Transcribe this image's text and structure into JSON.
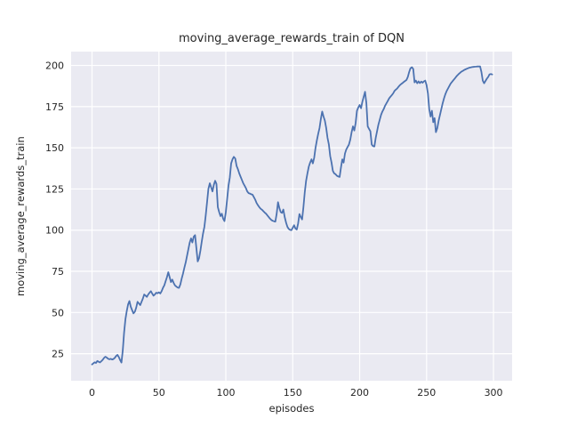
{
  "chart_data": {
    "type": "line",
    "title": "moving_average_rewards_train of DQN",
    "xlabel": "episodes",
    "ylabel": "moving_average_rewards_train",
    "xticks": [
      0,
      50,
      100,
      150,
      200,
      250,
      300
    ],
    "yticks": [
      25,
      50,
      75,
      100,
      125,
      150,
      175,
      200
    ],
    "xlim": [
      -15.6,
      313.9
    ],
    "ylim": [
      8.6,
      208.4
    ],
    "grid": true,
    "legend": "none",
    "colors": {
      "line": "#4C72B0",
      "plot_bg": "#EAEAF2",
      "grid": "#FFFFFF",
      "text": "#262626",
      "fig_bg": "#FFFFFF"
    },
    "series": [
      {
        "name": "moving_average_rewards_train",
        "color": "#4C72B0",
        "points": [
          [
            0,
            18.5
          ],
          [
            1,
            19.2
          ],
          [
            2,
            19.8
          ],
          [
            3,
            19.4
          ],
          [
            4,
            20.6
          ],
          [
            5,
            20.1
          ],
          [
            6,
            19.7
          ],
          [
            7,
            20.5
          ],
          [
            8,
            21.3
          ],
          [
            9,
            22.4
          ],
          [
            10,
            23.2
          ],
          [
            11,
            22.7
          ],
          [
            12,
            22.0
          ],
          [
            13,
            21.6
          ],
          [
            14,
            21.9
          ],
          [
            15,
            21.5
          ],
          [
            16,
            21.8
          ],
          [
            17,
            22.5
          ],
          [
            18,
            23.6
          ],
          [
            19,
            24.3
          ],
          [
            20,
            23.0
          ],
          [
            21,
            21.2
          ],
          [
            22,
            19.6
          ],
          [
            23,
            27.0
          ],
          [
            24,
            38.0
          ],
          [
            25,
            46.0
          ],
          [
            26,
            51.0
          ],
          [
            27,
            55.0
          ],
          [
            28,
            57.0
          ],
          [
            29,
            53.5
          ],
          [
            30,
            51.5
          ],
          [
            31,
            49.5
          ],
          [
            32,
            50.5
          ],
          [
            33,
            53.0
          ],
          [
            34,
            56.5
          ],
          [
            35,
            55.5
          ],
          [
            36,
            54.5
          ],
          [
            37,
            56.5
          ],
          [
            38,
            58.5
          ],
          [
            39,
            61.0
          ],
          [
            40,
            60.3
          ],
          [
            41,
            59.5
          ],
          [
            42,
            61.0
          ],
          [
            43,
            62.0
          ],
          [
            44,
            63.0
          ],
          [
            45,
            61.5
          ],
          [
            46,
            60.2
          ],
          [
            47,
            61.0
          ],
          [
            48,
            62.0
          ],
          [
            49,
            61.7
          ],
          [
            50,
            62.3
          ],
          [
            51,
            61.6
          ],
          [
            52,
            63.0
          ],
          [
            53,
            65.0
          ],
          [
            54,
            66.5
          ],
          [
            55,
            69.0
          ],
          [
            56,
            71.5
          ],
          [
            57,
            74.5
          ],
          [
            58,
            71.5
          ],
          [
            59,
            68.5
          ],
          [
            60,
            70.0
          ],
          [
            61,
            68.0
          ],
          [
            62,
            66.5
          ],
          [
            63,
            65.8
          ],
          [
            64,
            65.2
          ],
          [
            65,
            65.0
          ],
          [
            66,
            67.0
          ],
          [
            67,
            70.5
          ],
          [
            68,
            73.5
          ],
          [
            69,
            77.0
          ],
          [
            70,
            80.5
          ],
          [
            71,
            84.5
          ],
          [
            72,
            88.5
          ],
          [
            73,
            92.5
          ],
          [
            74,
            95.0
          ],
          [
            75,
            92.5
          ],
          [
            76,
            96.0
          ],
          [
            77,
            97.0
          ],
          [
            78,
            89.0
          ],
          [
            79,
            81.0
          ],
          [
            80,
            83.0
          ],
          [
            81,
            87.5
          ],
          [
            82,
            93.0
          ],
          [
            83,
            98.0
          ],
          [
            84,
            102.0
          ],
          [
            85,
            109.0
          ],
          [
            86,
            117.0
          ],
          [
            87,
            125.0
          ],
          [
            88,
            128.5
          ],
          [
            89,
            126.0
          ],
          [
            90,
            123.5
          ],
          [
            91,
            127.5
          ],
          [
            92,
            130.0
          ],
          [
            93,
            128.0
          ],
          [
            94,
            114.0
          ],
          [
            95,
            111.0
          ],
          [
            96,
            108.5
          ],
          [
            97,
            110.0
          ],
          [
            98,
            107.0
          ],
          [
            99,
            105.5
          ],
          [
            100,
            111.0
          ],
          [
            101,
            119.0
          ],
          [
            102,
            127.0
          ],
          [
            103,
            132.0
          ],
          [
            104,
            140.5
          ],
          [
            105,
            143.0
          ],
          [
            106,
            144.5
          ],
          [
            107,
            143.5
          ],
          [
            108,
            139.0
          ],
          [
            109,
            137.0
          ],
          [
            110,
            134.5
          ],
          [
            111,
            132.5
          ],
          [
            112,
            130.5
          ],
          [
            113,
            128.5
          ],
          [
            114,
            127.0
          ],
          [
            115,
            125.5
          ],
          [
            116,
            123.5
          ],
          [
            117,
            122.5
          ],
          [
            118,
            122.2
          ],
          [
            119,
            121.8
          ],
          [
            120,
            121.5
          ],
          [
            121,
            120.0
          ],
          [
            122,
            118.5
          ],
          [
            123,
            116.5
          ],
          [
            124,
            115.2
          ],
          [
            125,
            114.0
          ],
          [
            126,
            113.0
          ],
          [
            127,
            112.4
          ],
          [
            128,
            111.5
          ],
          [
            129,
            110.7
          ],
          [
            130,
            110.0
          ],
          [
            131,
            109.0
          ],
          [
            132,
            108.0
          ],
          [
            133,
            107.0
          ],
          [
            134,
            106.2
          ],
          [
            135,
            105.7
          ],
          [
            136,
            105.4
          ],
          [
            137,
            105.2
          ],
          [
            138,
            110.0
          ],
          [
            139,
            117.0
          ],
          [
            140,
            113.5
          ],
          [
            141,
            111.0
          ],
          [
            142,
            110.5
          ],
          [
            143,
            112.5
          ],
          [
            144,
            108.0
          ],
          [
            145,
            104.5
          ],
          [
            146,
            102.0
          ],
          [
            147,
            100.7
          ],
          [
            148,
            100.2
          ],
          [
            149,
            100.0
          ],
          [
            150,
            101.5
          ],
          [
            151,
            103.0
          ],
          [
            152,
            101.0
          ],
          [
            153,
            100.4
          ],
          [
            154,
            104.0
          ],
          [
            155,
            109.8
          ],
          [
            156,
            108.0
          ],
          [
            157,
            106.5
          ],
          [
            158,
            114.0
          ],
          [
            159,
            123.0
          ],
          [
            160,
            130.0
          ],
          [
            161,
            134.5
          ],
          [
            162,
            138.5
          ],
          [
            163,
            141.0
          ],
          [
            164,
            143.0
          ],
          [
            165,
            140.5
          ],
          [
            166,
            144.0
          ],
          [
            167,
            150.0
          ],
          [
            168,
            154.5
          ],
          [
            169,
            158.5
          ],
          [
            170,
            162.0
          ],
          [
            171,
            167.5
          ],
          [
            172,
            172.0
          ],
          [
            173,
            169.0
          ],
          [
            174,
            166.5
          ],
          [
            175,
            162.0
          ],
          [
            176,
            156.0
          ],
          [
            177,
            152.0
          ],
          [
            178,
            145.0
          ],
          [
            179,
            141.0
          ],
          [
            180,
            136.0
          ],
          [
            181,
            134.5
          ],
          [
            182,
            134.0
          ],
          [
            183,
            133.0
          ],
          [
            184,
            132.6
          ],
          [
            185,
            132.3
          ],
          [
            186,
            138.0
          ],
          [
            187,
            143.0
          ],
          [
            188,
            141.0
          ],
          [
            189,
            146.5
          ],
          [
            190,
            149.0
          ],
          [
            191,
            150.5
          ],
          [
            192,
            152.0
          ],
          [
            193,
            155.0
          ],
          [
            194,
            159.5
          ],
          [
            195,
            163.0
          ],
          [
            196,
            160.5
          ],
          [
            197,
            165.0
          ],
          [
            198,
            172.5
          ],
          [
            199,
            174.5
          ],
          [
            200,
            176.0
          ],
          [
            201,
            174.0
          ],
          [
            202,
            178.0
          ],
          [
            203,
            181.0
          ],
          [
            204,
            184.0
          ],
          [
            205,
            177.0
          ],
          [
            206,
            163.0
          ],
          [
            207,
            161.5
          ],
          [
            208,
            160.0
          ],
          [
            209,
            152.0
          ],
          [
            210,
            151.0
          ],
          [
            211,
            150.8
          ],
          [
            212,
            156.0
          ],
          [
            213,
            160.0
          ],
          [
            214,
            164.0
          ],
          [
            215,
            167.0
          ],
          [
            216,
            170.0
          ],
          [
            217,
            172.0
          ],
          [
            218,
            173.5
          ],
          [
            219,
            175.5
          ],
          [
            220,
            177.0
          ],
          [
            221,
            178.5
          ],
          [
            222,
            180.0
          ],
          [
            223,
            181.0
          ],
          [
            224,
            182.0
          ],
          [
            225,
            183.0
          ],
          [
            226,
            184.5
          ],
          [
            227,
            185.3
          ],
          [
            228,
            186.0
          ],
          [
            229,
            187.0
          ],
          [
            230,
            188.0
          ],
          [
            231,
            188.7
          ],
          [
            232,
            189.3
          ],
          [
            233,
            190.0
          ],
          [
            234,
            190.6
          ],
          [
            235,
            191.2
          ],
          [
            236,
            193.0
          ],
          [
            237,
            196.0
          ],
          [
            238,
            198.3
          ],
          [
            239,
            198.9
          ],
          [
            240,
            197.8
          ],
          [
            241,
            189.7
          ],
          [
            242,
            190.8
          ],
          [
            243,
            189.2
          ],
          [
            244,
            190.3
          ],
          [
            245,
            189.3
          ],
          [
            246,
            190.2
          ],
          [
            247,
            189.5
          ],
          [
            248,
            190.3
          ],
          [
            249,
            190.8
          ],
          [
            250,
            188.0
          ],
          [
            251,
            183.0
          ],
          [
            252,
            173.5
          ],
          [
            253,
            169.0
          ],
          [
            254,
            172.5
          ],
          [
            255,
            165.5
          ],
          [
            256,
            168.0
          ],
          [
            257,
            159.5
          ],
          [
            258,
            162.0
          ],
          [
            259,
            166.5
          ],
          [
            260,
            170.0
          ],
          [
            261,
            173.5
          ],
          [
            262,
            177.0
          ],
          [
            263,
            180.0
          ],
          [
            264,
            182.5
          ],
          [
            265,
            184.5
          ],
          [
            266,
            186.0
          ],
          [
            267,
            187.5
          ],
          [
            268,
            189.0
          ],
          [
            269,
            190.0
          ],
          [
            270,
            191.0
          ],
          [
            271,
            192.0
          ],
          [
            272,
            193.0
          ],
          [
            273,
            194.0
          ],
          [
            274,
            194.8
          ],
          [
            275,
            195.5
          ],
          [
            276,
            196.2
          ],
          [
            277,
            196.7
          ],
          [
            278,
            197.2
          ],
          [
            279,
            197.6
          ],
          [
            280,
            198.0
          ],
          [
            281,
            198.3
          ],
          [
            282,
            198.6
          ],
          [
            283,
            198.8
          ],
          [
            284,
            199.0
          ],
          [
            285,
            199.1
          ],
          [
            286,
            199.2
          ],
          [
            287,
            199.3
          ],
          [
            288,
            199.4
          ],
          [
            289,
            199.4
          ],
          [
            290,
            199.4
          ],
          [
            291,
            196.0
          ],
          [
            292,
            190.8
          ],
          [
            293,
            189.2
          ],
          [
            294,
            190.5
          ],
          [
            295,
            191.9
          ],
          [
            296,
            193.0
          ],
          [
            297,
            194.6
          ],
          [
            298,
            194.8
          ],
          [
            299,
            194.5
          ]
        ]
      }
    ]
  }
}
